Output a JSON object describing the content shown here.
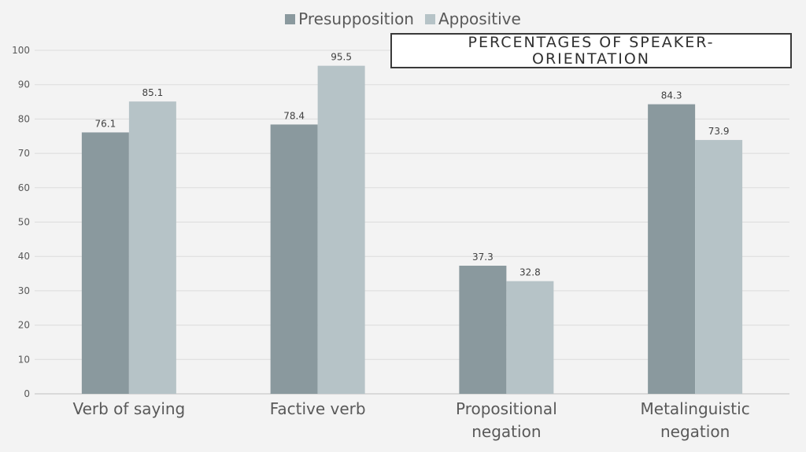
{
  "chart_data": {
    "type": "bar",
    "title": "PERCENTAGES OF SPEAKER-ORIENTATION",
    "categories": [
      [
        "Verb of saying"
      ],
      [
        "Factive verb"
      ],
      [
        "Propositional",
        "negation"
      ],
      [
        "Metalinguistic",
        "negation"
      ]
    ],
    "series": [
      {
        "name": "Presupposition",
        "values": [
          76.1,
          78.4,
          37.3,
          84.3
        ],
        "color": "#8a999e"
      },
      {
        "name": "Appositive",
        "values": [
          85.1,
          95.5,
          32.8,
          73.9
        ],
        "color": "#b6c3c7"
      }
    ],
    "ylim": [
      0,
      100
    ],
    "yticks": [
      0,
      10,
      20,
      30,
      40,
      50,
      60,
      70,
      80,
      90,
      100
    ],
    "grid": true,
    "legend": "top"
  }
}
